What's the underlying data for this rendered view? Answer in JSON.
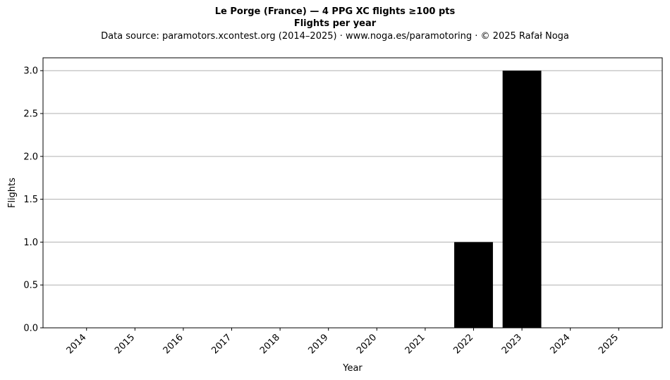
{
  "chart_data": {
    "type": "bar",
    "title": "Le Porge (France)  —  4 PPG XC flights ≥100 pts",
    "subtitle": "Flights per year",
    "source": "Data source: paramotors.xcontest.org (2014–2025)  ·  www.noga.es/paramotoring  ·  © 2025 Rafał Noga",
    "xlabel": "Year",
    "ylabel": "Flights",
    "categories": [
      "2014",
      "2015",
      "2016",
      "2017",
      "2018",
      "2019",
      "2020",
      "2021",
      "2022",
      "2023",
      "2024",
      "2025"
    ],
    "values": [
      0,
      0,
      0,
      0,
      0,
      0,
      0,
      0,
      1,
      3,
      0,
      0
    ],
    "ylim": [
      0,
      3.15
    ],
    "yticks": [
      0.0,
      0.5,
      1.0,
      1.5,
      2.0,
      2.5,
      3.0
    ],
    "ytick_labels": [
      "0.0",
      "0.5",
      "1.0",
      "1.5",
      "2.0",
      "2.5",
      "3.0"
    ],
    "grid": "y",
    "bar_color": "#000000",
    "grid_color": "#b0b0b0"
  }
}
